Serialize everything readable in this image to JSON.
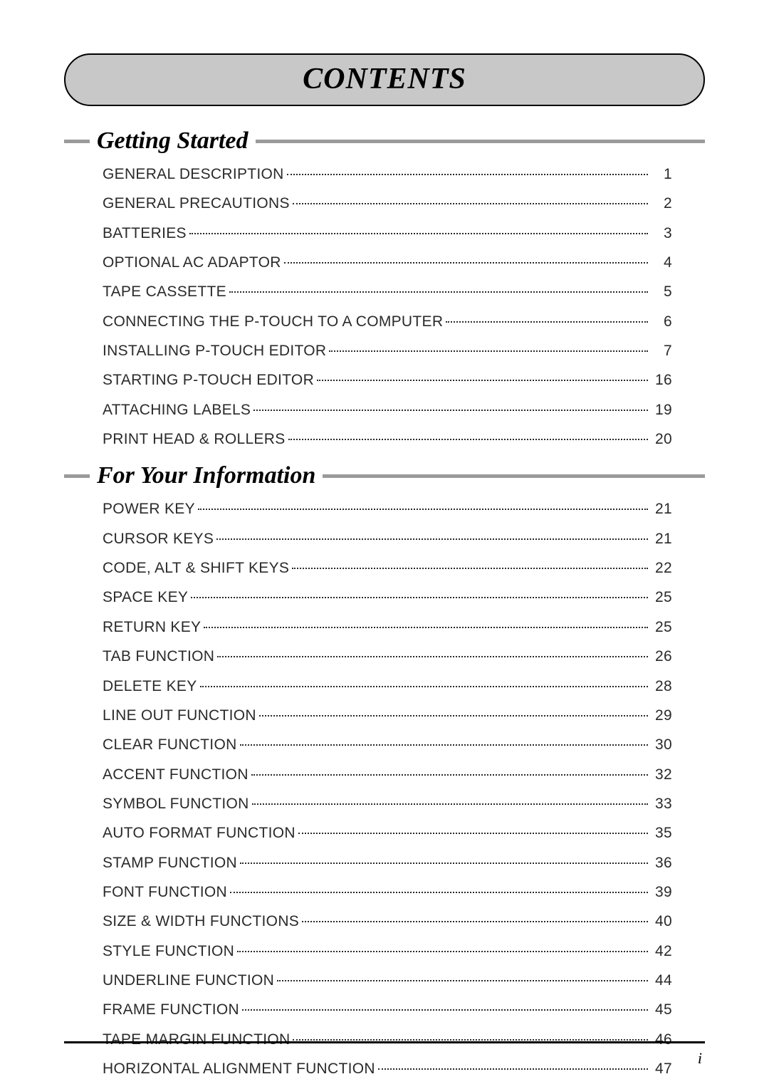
{
  "title": "CONTENTS",
  "page_number": "i",
  "colors": {
    "title_bg": "#c8c8c8",
    "section_dash": "#9a9a9a",
    "text": "#2a2a2a",
    "rule": "#000000"
  },
  "typography": {
    "title_fontsize": 42,
    "section_fontsize": 34,
    "entry_fontsize": 21,
    "title_font": "Palatino italic bold",
    "entry_font": "Optima"
  },
  "sections": [
    {
      "heading": "Getting Started",
      "entries": [
        {
          "label": "GENERAL DESCRIPTION",
          "page": "1"
        },
        {
          "label": "GENERAL PRECAUTIONS",
          "page": "2"
        },
        {
          "label": "BATTERIES",
          "page": "3"
        },
        {
          "label": "OPTIONAL AC ADAPTOR",
          "page": "4"
        },
        {
          "label": "TAPE CASSETTE",
          "page": "5"
        },
        {
          "label": "CONNECTING THE P-TOUCH TO A COMPUTER",
          "page": "6"
        },
        {
          "label": "INSTALLING P-TOUCH EDITOR",
          "page": "7"
        },
        {
          "label": "STARTING P-TOUCH EDITOR",
          "page": "16"
        },
        {
          "label": "ATTACHING LABELS",
          "page": "19"
        },
        {
          "label": "PRINT HEAD & ROLLERS",
          "page": "20"
        }
      ]
    },
    {
      "heading": "For Your Information",
      "entries": [
        {
          "label": "POWER KEY",
          "page": "21"
        },
        {
          "label": "CURSOR KEYS",
          "page": "21"
        },
        {
          "label": "CODE, ALT & SHIFT KEYS",
          "page": "22"
        },
        {
          "label": "SPACE KEY",
          "page": "25"
        },
        {
          "label": "RETURN KEY",
          "page": "25"
        },
        {
          "label": "TAB FUNCTION",
          "page": "26"
        },
        {
          "label": "DELETE KEY",
          "page": "28"
        },
        {
          "label": "LINE OUT FUNCTION",
          "page": "29"
        },
        {
          "label": "CLEAR FUNCTION",
          "page": "30"
        },
        {
          "label": "ACCENT FUNCTION",
          "page": "32"
        },
        {
          "label": "SYMBOL FUNCTION",
          "page": "33"
        },
        {
          "label": "AUTO FORMAT FUNCTION",
          "page": "35"
        },
        {
          "label": "STAMP FUNCTION",
          "page": "36"
        },
        {
          "label": "FONT FUNCTION",
          "page": "39"
        },
        {
          "label": "SIZE & WIDTH FUNCTIONS",
          "page": "40"
        },
        {
          "label": "STYLE FUNCTION",
          "page": "42"
        },
        {
          "label": "UNDERLINE FUNCTION",
          "page": "44"
        },
        {
          "label": "FRAME FUNCTION",
          "page": "45"
        },
        {
          "label": "TAPE MARGIN FUNCTION",
          "page": "46"
        },
        {
          "label": "HORIZONTAL ALIGNMENT FUNCTION",
          "page": "47"
        }
      ]
    }
  ]
}
